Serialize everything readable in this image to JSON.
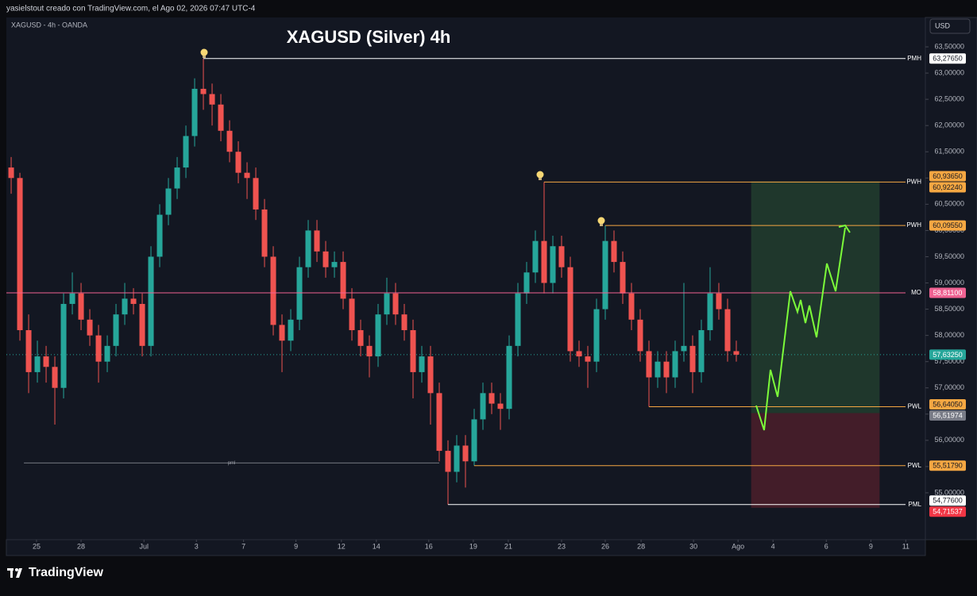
{
  "page": {
    "header": "yasielstout creado con TradingView.com, el Ago 02, 2026 07:47 UTC-4",
    "symbol": "XAGUSD - 4h - OANDA",
    "currency": "USD",
    "brand": "TradingView"
  },
  "chart_data": {
    "type": "candlestick",
    "title": "XAGUSD (Silver) 4h",
    "up_color": "#26a69a",
    "down_color": "#ef5350",
    "candles": [
      {
        "o": 61.2,
        "h": 61.4,
        "l": 60.7,
        "c": 61.0
      },
      {
        "o": 61.0,
        "h": 61.1,
        "l": 57.9,
        "c": 58.1
      },
      {
        "o": 58.1,
        "h": 58.4,
        "l": 56.9,
        "c": 57.3
      },
      {
        "o": 57.3,
        "h": 57.9,
        "l": 57.1,
        "c": 57.6
      },
      {
        "o": 57.6,
        "h": 57.8,
        "l": 57.1,
        "c": 57.4
      },
      {
        "o": 57.4,
        "h": 57.6,
        "l": 56.3,
        "c": 57.0
      },
      {
        "o": 57.0,
        "h": 58.8,
        "l": 56.8,
        "c": 58.6
      },
      {
        "o": 58.6,
        "h": 59.2,
        "l": 58.4,
        "c": 58.8
      },
      {
        "o": 58.8,
        "h": 59.0,
        "l": 58.1,
        "c": 58.3
      },
      {
        "o": 58.3,
        "h": 58.5,
        "l": 57.8,
        "c": 58.0
      },
      {
        "o": 58.0,
        "h": 58.2,
        "l": 57.1,
        "c": 57.5
      },
      {
        "o": 57.5,
        "h": 58.0,
        "l": 57.3,
        "c": 57.8
      },
      {
        "o": 57.8,
        "h": 58.6,
        "l": 57.6,
        "c": 58.4
      },
      {
        "o": 58.4,
        "h": 59.0,
        "l": 58.2,
        "c": 58.7
      },
      {
        "o": 58.7,
        "h": 58.9,
        "l": 58.4,
        "c": 58.6
      },
      {
        "o": 58.6,
        "h": 58.8,
        "l": 57.6,
        "c": 57.8
      },
      {
        "o": 57.8,
        "h": 59.7,
        "l": 57.6,
        "c": 59.5
      },
      {
        "o": 59.5,
        "h": 60.5,
        "l": 59.3,
        "c": 60.3
      },
      {
        "o": 60.3,
        "h": 61.0,
        "l": 60.1,
        "c": 60.8
      },
      {
        "o": 60.8,
        "h": 61.4,
        "l": 60.6,
        "c": 61.2
      },
      {
        "o": 61.2,
        "h": 62.0,
        "l": 61.0,
        "c": 61.8
      },
      {
        "o": 61.8,
        "h": 62.9,
        "l": 61.6,
        "c": 62.7
      },
      {
        "o": 62.7,
        "h": 63.2765,
        "l": 62.3,
        "c": 62.6
      },
      {
        "o": 62.6,
        "h": 62.8,
        "l": 62.0,
        "c": 62.4
      },
      {
        "o": 62.4,
        "h": 62.6,
        "l": 61.7,
        "c": 61.9
      },
      {
        "o": 61.9,
        "h": 62.1,
        "l": 61.3,
        "c": 61.5
      },
      {
        "o": 61.5,
        "h": 61.7,
        "l": 60.9,
        "c": 61.1
      },
      {
        "o": 61.1,
        "h": 61.3,
        "l": 60.6,
        "c": 61.0
      },
      {
        "o": 61.0,
        "h": 61.2,
        "l": 60.2,
        "c": 60.4
      },
      {
        "o": 60.4,
        "h": 60.6,
        "l": 59.3,
        "c": 59.5
      },
      {
        "o": 59.5,
        "h": 59.7,
        "l": 58.0,
        "c": 58.2
      },
      {
        "o": 58.2,
        "h": 58.4,
        "l": 57.3,
        "c": 57.9
      },
      {
        "o": 57.9,
        "h": 58.5,
        "l": 57.7,
        "c": 58.3
      },
      {
        "o": 58.3,
        "h": 59.5,
        "l": 58.1,
        "c": 59.3
      },
      {
        "o": 59.3,
        "h": 60.2,
        "l": 59.1,
        "c": 60.0
      },
      {
        "o": 60.0,
        "h": 60.2,
        "l": 59.4,
        "c": 59.6
      },
      {
        "o": 59.6,
        "h": 59.8,
        "l": 59.1,
        "c": 59.3
      },
      {
        "o": 59.3,
        "h": 59.6,
        "l": 59.1,
        "c": 59.4
      },
      {
        "o": 59.4,
        "h": 59.6,
        "l": 58.5,
        "c": 58.7
      },
      {
        "o": 58.7,
        "h": 58.9,
        "l": 57.9,
        "c": 58.1
      },
      {
        "o": 58.1,
        "h": 58.3,
        "l": 57.6,
        "c": 57.8
      },
      {
        "o": 57.8,
        "h": 58.0,
        "l": 57.2,
        "c": 57.6
      },
      {
        "o": 57.6,
        "h": 58.6,
        "l": 57.4,
        "c": 58.4
      },
      {
        "o": 58.4,
        "h": 59.1,
        "l": 58.2,
        "c": 58.8
      },
      {
        "o": 58.8,
        "h": 59.0,
        "l": 58.2,
        "c": 58.4
      },
      {
        "o": 58.4,
        "h": 58.6,
        "l": 57.9,
        "c": 58.1
      },
      {
        "o": 58.1,
        "h": 58.3,
        "l": 56.8,
        "c": 57.3
      },
      {
        "o": 57.3,
        "h": 57.8,
        "l": 57.1,
        "c": 57.6
      },
      {
        "o": 57.6,
        "h": 57.8,
        "l": 56.3,
        "c": 56.9
      },
      {
        "o": 56.9,
        "h": 57.1,
        "l": 55.6,
        "c": 55.8
      },
      {
        "o": 55.8,
        "h": 56.0,
        "l": 54.776,
        "c": 55.4
      },
      {
        "o": 55.4,
        "h": 56.1,
        "l": 55.2,
        "c": 55.9
      },
      {
        "o": 55.9,
        "h": 56.1,
        "l": 55.1,
        "c": 55.6
      },
      {
        "o": 55.6,
        "h": 56.6,
        "l": 55.5179,
        "c": 56.4
      },
      {
        "o": 56.4,
        "h": 57.1,
        "l": 56.2,
        "c": 56.9
      },
      {
        "o": 56.9,
        "h": 57.1,
        "l": 56.5,
        "c": 56.7
      },
      {
        "o": 56.7,
        "h": 56.9,
        "l": 56.2,
        "c": 56.6
      },
      {
        "o": 56.6,
        "h": 58.0,
        "l": 56.4,
        "c": 57.8
      },
      {
        "o": 57.8,
        "h": 59.0,
        "l": 57.6,
        "c": 58.8
      },
      {
        "o": 58.8,
        "h": 59.4,
        "l": 58.6,
        "c": 59.2
      },
      {
        "o": 59.2,
        "h": 60.0,
        "l": 59.0,
        "c": 59.8
      },
      {
        "o": 59.8,
        "h": 60.9224,
        "l": 58.8,
        "c": 59.0
      },
      {
        "o": 59.0,
        "h": 59.9,
        "l": 58.8,
        "c": 59.7
      },
      {
        "o": 59.7,
        "h": 59.9,
        "l": 59.1,
        "c": 59.3
      },
      {
        "o": 59.3,
        "h": 59.5,
        "l": 57.5,
        "c": 57.7
      },
      {
        "o": 57.7,
        "h": 57.9,
        "l": 57.4,
        "c": 57.6
      },
      {
        "o": 57.6,
        "h": 57.8,
        "l": 57.0,
        "c": 57.5
      },
      {
        "o": 57.5,
        "h": 58.7,
        "l": 57.3,
        "c": 58.5
      },
      {
        "o": 58.5,
        "h": 60.0955,
        "l": 58.3,
        "c": 59.8
      },
      {
        "o": 59.8,
        "h": 60.0,
        "l": 59.2,
        "c": 59.4
      },
      {
        "o": 59.4,
        "h": 59.6,
        "l": 58.6,
        "c": 58.8
      },
      {
        "o": 58.8,
        "h": 59.0,
        "l": 58.1,
        "c": 58.3
      },
      {
        "o": 58.3,
        "h": 58.5,
        "l": 57.5,
        "c": 57.7
      },
      {
        "o": 57.7,
        "h": 57.9,
        "l": 56.6405,
        "c": 57.2
      },
      {
        "o": 57.2,
        "h": 57.7,
        "l": 57.0,
        "c": 57.5
      },
      {
        "o": 57.5,
        "h": 57.7,
        "l": 56.9,
        "c": 57.2
      },
      {
        "o": 57.2,
        "h": 57.9,
        "l": 57.0,
        "c": 57.7
      },
      {
        "o": 57.7,
        "h": 59.0,
        "l": 57.5,
        "c": 57.8
      },
      {
        "o": 57.8,
        "h": 58.0,
        "l": 56.9,
        "c": 57.3
      },
      {
        "o": 57.3,
        "h": 58.3,
        "l": 57.1,
        "c": 58.1
      },
      {
        "o": 58.1,
        "h": 59.3,
        "l": 57.9,
        "c": 58.8
      },
      {
        "o": 58.8,
        "h": 59.0,
        "l": 58.3,
        "c": 58.5
      },
      {
        "o": 58.5,
        "h": 58.7,
        "l": 57.5,
        "c": 57.7
      },
      {
        "o": 57.7,
        "h": 57.9,
        "l": 57.5,
        "c": 57.6325
      }
    ],
    "xlim": [
      -0.55,
      104.64
    ],
    "xticks": [
      {
        "value": 2.9,
        "label": "25"
      },
      {
        "value": 8,
        "label": "28"
      },
      {
        "value": 15.2,
        "label": "Jul"
      },
      {
        "value": 21.2,
        "label": "3"
      },
      {
        "value": 26.6,
        "label": "7"
      },
      {
        "value": 32.6,
        "label": "9"
      },
      {
        "value": 37.8,
        "label": "12"
      },
      {
        "value": 41.8,
        "label": "14"
      },
      {
        "value": 47.8,
        "label": "16"
      },
      {
        "value": 52.9,
        "label": "19"
      },
      {
        "value": 56.9,
        "label": "21"
      },
      {
        "value": 63,
        "label": "23"
      },
      {
        "value": 68,
        "label": "26"
      },
      {
        "value": 72.1,
        "label": "28"
      },
      {
        "value": 78.1,
        "label": "30"
      },
      {
        "value": 83.2,
        "label": "Ago"
      },
      {
        "value": 87.2,
        "label": "4"
      },
      {
        "value": 93.3,
        "label": "6"
      },
      {
        "value": 98.4,
        "label": "9"
      },
      {
        "value": 102.4,
        "label": "11"
      }
    ],
    "ylim": [
      54.107,
      64.06
    ],
    "yticks": [
      {
        "value": 55,
        "label": "55,00000"
      },
      {
        "value": 55.5,
        "label": "55,50000"
      },
      {
        "value": 56,
        "label": "56,00000"
      },
      {
        "value": 56.5,
        "label": "56,50000"
      },
      {
        "value": 57,
        "label": "57,00000"
      },
      {
        "value": 57.5,
        "label": "57,50000"
      },
      {
        "value": 58,
        "label": "58,00000"
      },
      {
        "value": 58.5,
        "label": "58,50000"
      },
      {
        "value": 59,
        "label": "59,00000"
      },
      {
        "value": 59.5,
        "label": "59,50000"
      },
      {
        "value": 60,
        "label": "60,00000"
      },
      {
        "value": 60.5,
        "label": "60,50000"
      },
      {
        "value": 61,
        "label": "61,00000"
      },
      {
        "value": 61.5,
        "label": "61,50000"
      },
      {
        "value": 62,
        "label": "62,00000"
      },
      {
        "value": 62.5,
        "label": "62,50000"
      },
      {
        "value": 63,
        "label": "63,00000"
      },
      {
        "value": 63.5,
        "label": "63,50000"
      }
    ],
    "levels": [
      {
        "name": "PMH",
        "value": 63.2765,
        "label": "63,27650",
        "color": "#ffffff"
      },
      {
        "name": "PWH",
        "value": 60.9224,
        "label": "60,92240",
        "color": "#f5a742"
      },
      {
        "name": "PWH",
        "value": 60.0955,
        "label": "60,09550",
        "color": "#f5a742"
      },
      {
        "name": "MO",
        "value": 58.811,
        "label": "58,81100",
        "color": "#f06292"
      },
      {
        "name": "PWL",
        "value": 56.6405,
        "label": "56,64050",
        "color": "#f5a742"
      },
      {
        "name": "PWL",
        "value": 55.5179,
        "label": "55,51790",
        "color": "#f5a742"
      },
      {
        "name": "PML",
        "value": 54.776,
        "label": "54,77600",
        "color": "#ffffff"
      }
    ],
    "pml": {
      "name": "pml",
      "value": 55.57
    },
    "current": {
      "value": 57.6325,
      "label": "57,63250",
      "color": "#26a69a"
    },
    "position": {
      "target": {
        "value": 60.9365,
        "label": "60,93650",
        "color": "#f5a742"
      },
      "entry": {
        "value": 56.51974,
        "label": "56,51974",
        "color": "#787b86"
      },
      "stop": {
        "value": 54.71537,
        "label": "54,71537",
        "color": "#f23645"
      }
    }
  }
}
